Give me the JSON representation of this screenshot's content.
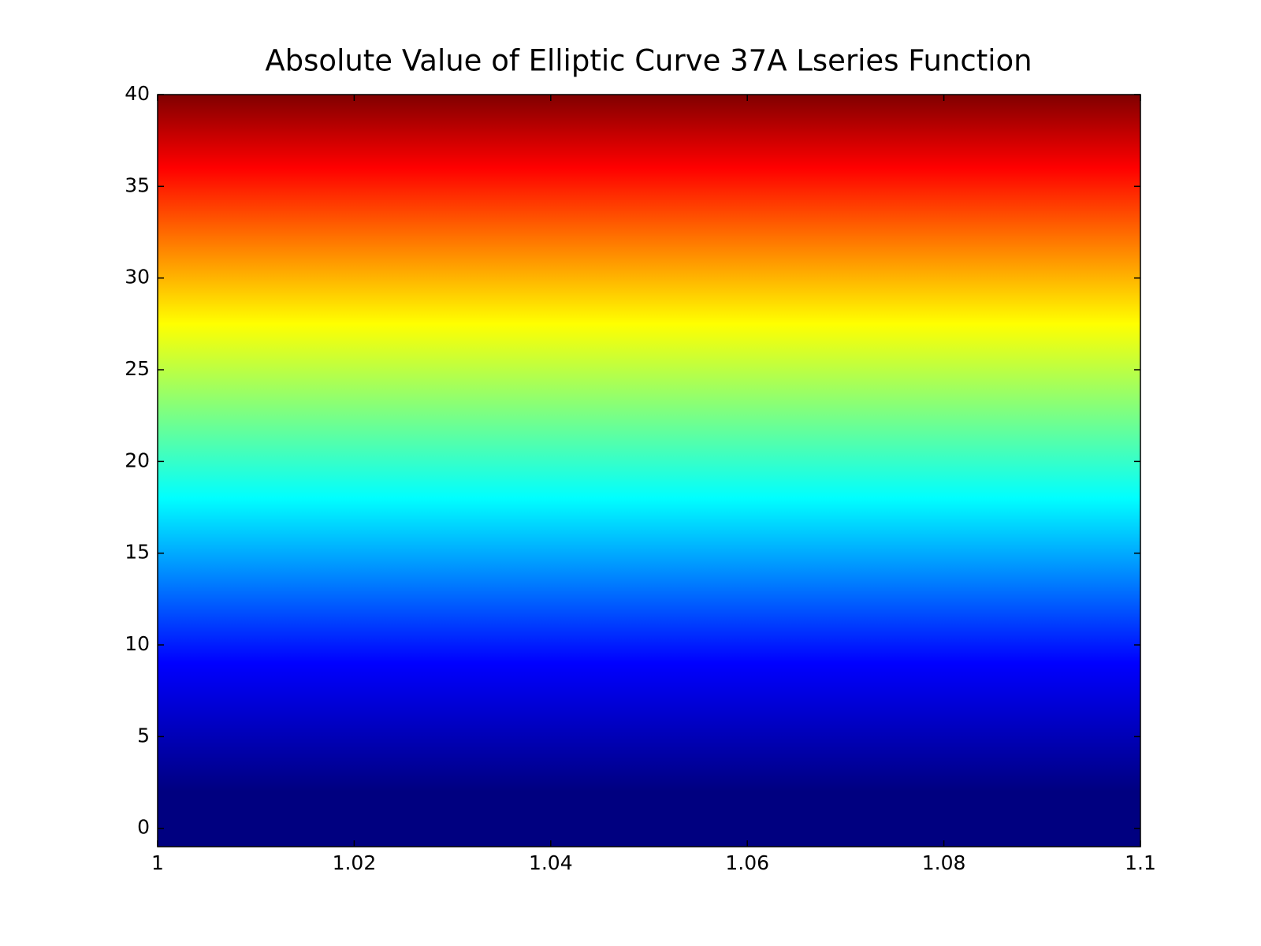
{
  "chart_data": {
    "type": "heatmap",
    "title": "Absolute Value of Elliptic Curve 37A Lseries Function",
    "xlim": [
      1,
      1.1
    ],
    "ylim": [
      -1,
      40
    ],
    "xticks": [
      1,
      1.02,
      1.04,
      1.06,
      1.08,
      1.1
    ],
    "yticks": [
      0,
      5,
      10,
      15,
      20,
      25,
      30,
      35,
      40
    ],
    "colormap": "jet",
    "color_stops": [
      {
        "y": 2,
        "color": "#000080"
      },
      {
        "y": 9,
        "color": "#0000ff"
      },
      {
        "y": 18,
        "color": "#00ffff"
      },
      {
        "y": 27.5,
        "color": "#ffff00"
      },
      {
        "y": 36,
        "color": "#ff0000"
      },
      {
        "y": 40,
        "color": "#800000"
      }
    ]
  }
}
